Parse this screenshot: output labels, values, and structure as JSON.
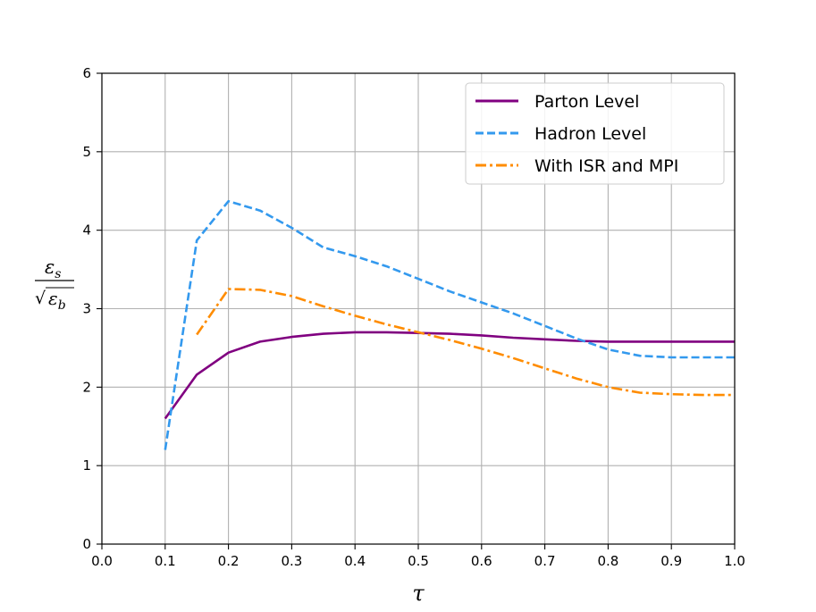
{
  "chart_data": {
    "type": "line",
    "xlabel": "τ",
    "ylabel": {
      "numerator": "ε",
      "numerator_sub": "s",
      "denominator_radical": "√",
      "denominator": "ε",
      "denominator_sub": "b"
    },
    "xlim": [
      0.0,
      1.0
    ],
    "ylim": [
      0,
      6
    ],
    "xticks": [
      "0.0",
      "0.1",
      "0.2",
      "0.3",
      "0.4",
      "0.5",
      "0.6",
      "0.7",
      "0.8",
      "0.9",
      "1.0"
    ],
    "yticks": [
      "0",
      "1",
      "2",
      "3",
      "4",
      "5",
      "6"
    ],
    "grid": true,
    "legend_position": "top-right",
    "series": [
      {
        "name": "Parton Level",
        "color": "#800080",
        "style": "solid",
        "x": [
          0.1,
          0.15,
          0.2,
          0.25,
          0.3,
          0.35,
          0.4,
          0.45,
          0.5,
          0.55,
          0.6,
          0.65,
          0.7,
          0.75,
          0.8,
          0.85,
          0.9,
          0.95,
          1.0
        ],
        "y": [
          1.6,
          2.16,
          2.44,
          2.58,
          2.64,
          2.68,
          2.7,
          2.7,
          2.69,
          2.68,
          2.66,
          2.63,
          2.61,
          2.59,
          2.58,
          2.58,
          2.58,
          2.58,
          2.58
        ]
      },
      {
        "name": "Hadron Level",
        "color": "#3399ee",
        "style": "dashed",
        "x": [
          0.1,
          0.15,
          0.2,
          0.25,
          0.3,
          0.35,
          0.4,
          0.45,
          0.5,
          0.55,
          0.6,
          0.65,
          0.7,
          0.75,
          0.8,
          0.85,
          0.9,
          0.95,
          1.0
        ],
        "y": [
          1.2,
          3.87,
          4.37,
          4.25,
          4.03,
          3.78,
          3.67,
          3.54,
          3.38,
          3.22,
          3.08,
          2.94,
          2.78,
          2.62,
          2.48,
          2.4,
          2.38,
          2.38,
          2.38
        ]
      },
      {
        "name": "With ISR and MPI",
        "color": "#ff8c00",
        "style": "dashdot",
        "x": [
          0.15,
          0.2,
          0.25,
          0.3,
          0.35,
          0.4,
          0.45,
          0.5,
          0.55,
          0.6,
          0.65,
          0.7,
          0.75,
          0.8,
          0.85,
          0.9,
          0.95,
          1.0
        ],
        "y": [
          2.67,
          3.25,
          3.24,
          3.16,
          3.03,
          2.91,
          2.8,
          2.7,
          2.6,
          2.49,
          2.37,
          2.24,
          2.11,
          2.0,
          1.93,
          1.91,
          1.9,
          1.9
        ]
      }
    ]
  }
}
